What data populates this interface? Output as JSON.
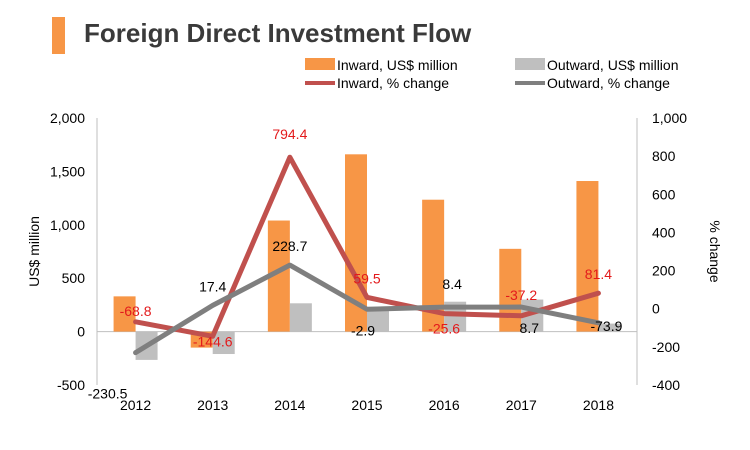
{
  "title": "Foreign Direct Investment Flow",
  "colors": {
    "accent": "#f79646",
    "inward_bar": "#f79646",
    "outward_bar": "#bfbfbf",
    "inward_line": "#c0504d",
    "outward_line": "#7f7f7f",
    "inward_label": "#e31a1c",
    "outward_label": "#000000",
    "axis": "#bfbfbf",
    "text": "#000000"
  },
  "chart_data": {
    "type": "bar",
    "categories": [
      "2012",
      "2013",
      "2014",
      "2015",
      "2016",
      "2017",
      "2018"
    ],
    "ylabel": "US$ million",
    "y2label": "% change",
    "ylim": [
      -500,
      2000
    ],
    "y2lim": [
      -400,
      1000
    ],
    "yticks": [
      "-500",
      "0",
      "500",
      "1,000",
      "1,500",
      "2,000"
    ],
    "y2ticks": [
      "-400",
      "-200",
      "0",
      "200",
      "400",
      "600",
      "800",
      "1,000"
    ],
    "legend_position": "top-right",
    "grid": false,
    "series": [
      {
        "name": "Inward, US$ million",
        "type": "bar",
        "axis": "left",
        "values": [
          330,
          -150,
          1040,
          1660,
          1235,
          775,
          1410
        ]
      },
      {
        "name": "Outward, US$ million",
        "type": "bar",
        "axis": "left",
        "values": [
          -265,
          -210,
          265,
          225,
          280,
          300,
          75
        ]
      },
      {
        "name": "Inward, % change",
        "type": "line",
        "axis": "right",
        "values": [
          -68.8,
          -144.6,
          794.4,
          59.5,
          -25.6,
          -37.2,
          81.4
        ],
        "labels": [
          "-68.8",
          "-144.6",
          "794.4",
          "59.5",
          "-25.6",
          "-37.2",
          "81.4"
        ]
      },
      {
        "name": "Outward, % change",
        "type": "line",
        "axis": "right",
        "values": [
          -230.5,
          17.4,
          228.7,
          -2.9,
          8.4,
          8.7,
          -73.9
        ],
        "labels": [
          "-230.5",
          "17.4",
          "228.7",
          "-2.9",
          "8.4",
          "8.7",
          "-73.9"
        ]
      }
    ]
  }
}
